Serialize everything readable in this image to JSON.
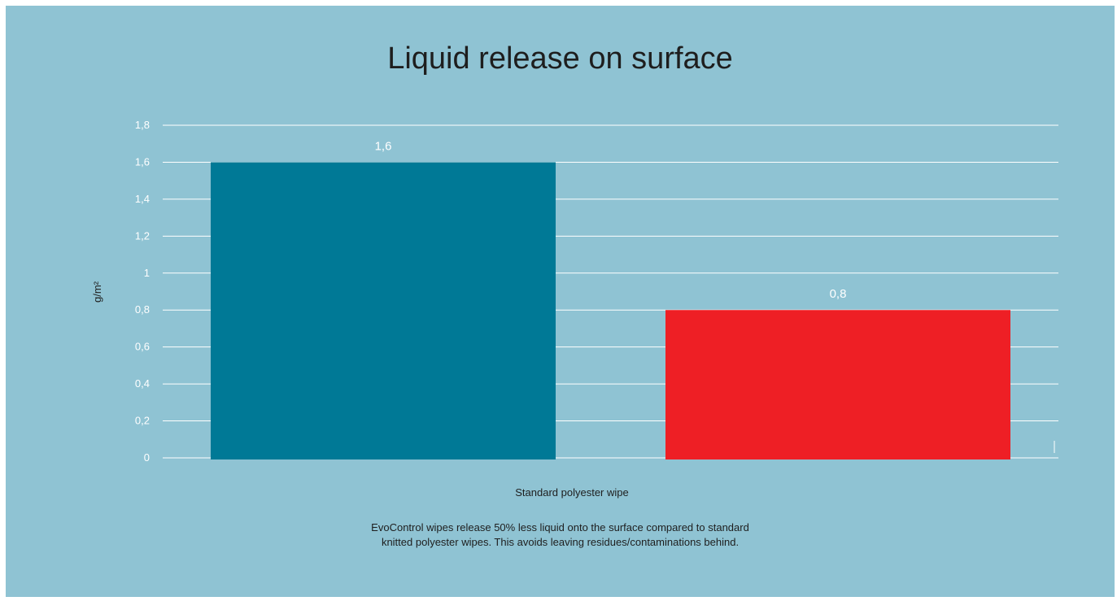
{
  "chart_data": {
    "type": "bar",
    "title": "Liquid release on surface",
    "xlabel": "Standard polyester wipe",
    "ylabel": "g/m²",
    "ylim": [
      0,
      1.8
    ],
    "ytick_values": [
      0,
      0.2,
      0.4,
      0.6,
      0.8,
      1,
      1.2,
      1.4,
      1.6,
      1.8
    ],
    "ytick_labels": [
      "0",
      "0,2",
      "0,4",
      "0,6",
      "0,8",
      "1",
      "1,2",
      "1,4",
      "1,6",
      "1,8"
    ],
    "grid": true,
    "legend": "none",
    "bars": [
      {
        "value": 1.6,
        "label": "1,6",
        "color": "#007996"
      },
      {
        "value": 0.8,
        "label": "0,8",
        "color": "#ee1f25"
      }
    ]
  },
  "caption": {
    "line1": "EvoControl wipes release 50% less liquid onto the surface compared to standard",
    "line2": "knitted polyester wipes. This avoids leaving residues/contaminations behind."
  },
  "colors": {
    "background": "#8fc3d3",
    "grid": "#ffffff",
    "text": "#1e1e1e"
  }
}
